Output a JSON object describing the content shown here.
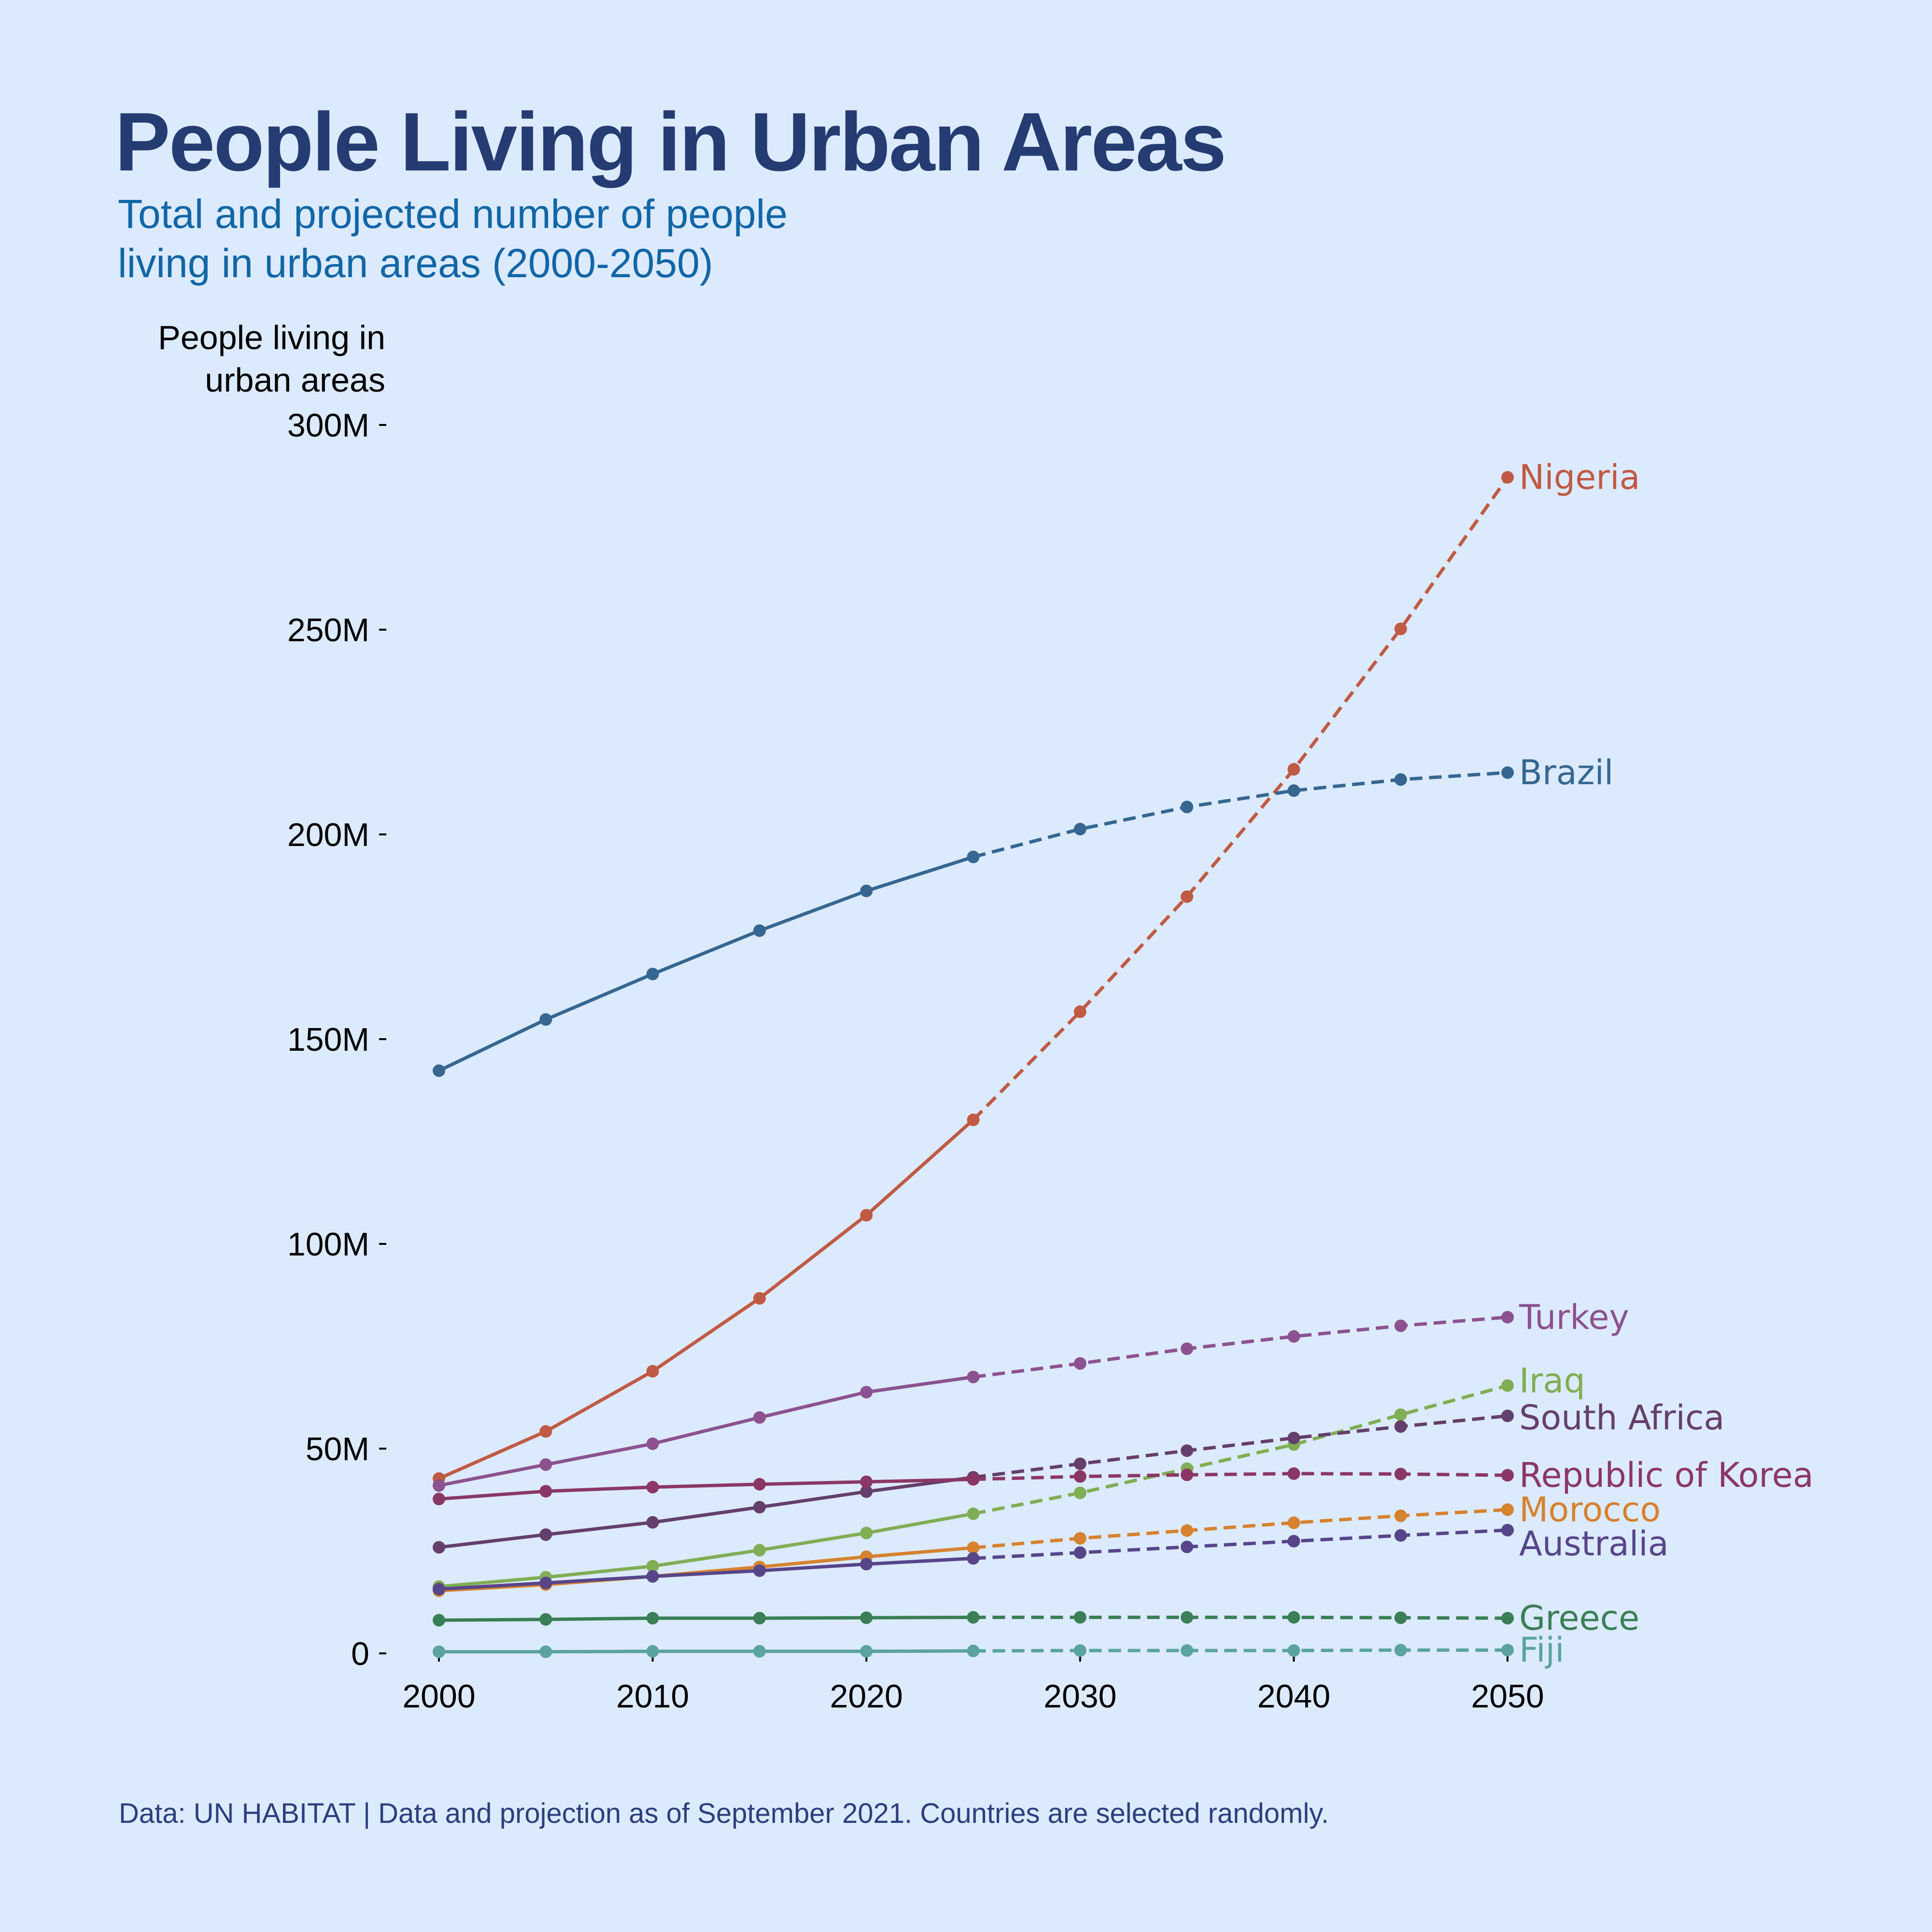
{
  "header": {
    "title": "People Living in Urban Areas",
    "subtitle_line1": "Total and projected number of people",
    "subtitle_line2": "living in urban areas (2000-2050)"
  },
  "footer": {
    "text": "Data: UN HABITAT | Data and projection as of September 2021. Countries are selected randomly."
  },
  "colors": {
    "background": "#dceafe",
    "title": "#243c72",
    "subtitle": "#1166a6",
    "footer": "#2b3f7e"
  },
  "chart_data": {
    "type": "line",
    "title": "People Living in Urban Areas",
    "subtitle": "Total and projected number of people living in urban areas (2000-2050)",
    "xlabel": "",
    "ylabel": "People living in urban areas",
    "ylabel_line1": "People living in",
    "ylabel_line2": "urban areas",
    "x": [
      2000,
      2005,
      2010,
      2015,
      2020,
      2025,
      2030,
      2035,
      2040,
      2045,
      2050
    ],
    "projection_start": 2025,
    "projection_note": "solid = data (2000-2025), dashed = projection (2025-2050)",
    "xlim": [
      2000,
      2050
    ],
    "ylim": [
      0,
      300
    ],
    "units": "millions",
    "x_ticks": [
      2000,
      2010,
      2020,
      2030,
      2040,
      2050
    ],
    "x_tick_labels": [
      "2000",
      "2010",
      "2020",
      "2030",
      "2040",
      "2050"
    ],
    "y_ticks": [
      0,
      50,
      100,
      150,
      200,
      250,
      300
    ],
    "y_tick_labels": [
      "0",
      "50M",
      "100M",
      "150M",
      "200M",
      "250M",
      "300M"
    ],
    "grid": false,
    "legend": "direct labels at line ends (right)",
    "series": [
      {
        "name": "Nigeria",
        "color": "#c05a45",
        "values": [
          42.7,
          54.2,
          68.9,
          86.7,
          107.0,
          130.3,
          156.7,
          184.8,
          215.9,
          250.2,
          287.2
        ]
      },
      {
        "name": "Brazil",
        "color": "#356790",
        "values": [
          142.3,
          154.8,
          165.9,
          176.5,
          186.2,
          194.5,
          201.3,
          206.7,
          210.7,
          213.4,
          215.1
        ]
      },
      {
        "name": "Turkey",
        "color": "#8c528f",
        "values": [
          41.0,
          46.1,
          51.2,
          57.6,
          63.8,
          67.5,
          70.8,
          74.4,
          77.4,
          80.0,
          82.1
        ]
      },
      {
        "name": "Iraq",
        "color": "#80ae55",
        "values": [
          16.3,
          18.6,
          21.3,
          25.2,
          29.4,
          34.1,
          39.2,
          45.1,
          51.0,
          58.3,
          65.4
        ]
      },
      {
        "name": "South Africa",
        "color": "#653f6c",
        "values": [
          25.9,
          29.0,
          32.0,
          35.7,
          39.5,
          43.0,
          46.3,
          49.5,
          52.6,
          55.4,
          58.0
        ]
      },
      {
        "name": "Republic of Korea",
        "color": "#8b3766",
        "values": [
          37.7,
          39.6,
          40.6,
          41.3,
          41.9,
          42.5,
          43.2,
          43.6,
          43.9,
          43.8,
          43.5
        ]
      },
      {
        "name": "Morocco",
        "color": "#d6822f",
        "values": [
          15.3,
          16.8,
          18.8,
          21.1,
          23.6,
          25.8,
          28.1,
          30.0,
          31.9,
          33.6,
          35.1
        ]
      },
      {
        "name": "Australia",
        "color": "#57458a",
        "values": [
          15.7,
          17.2,
          18.8,
          20.2,
          21.8,
          23.2,
          24.6,
          26.0,
          27.4,
          28.8,
          30.1
        ]
      },
      {
        "name": "Greece",
        "color": "#3a7f56",
        "values": [
          8.1,
          8.3,
          8.6,
          8.6,
          8.7,
          8.8,
          8.8,
          8.8,
          8.8,
          8.7,
          8.6
        ]
      },
      {
        "name": "Fiji",
        "color": "#5aa3a0",
        "values": [
          0.4,
          0.4,
          0.5,
          0.5,
          0.5,
          0.6,
          0.7,
          0.7,
          0.7,
          0.8,
          0.8
        ]
      }
    ]
  }
}
